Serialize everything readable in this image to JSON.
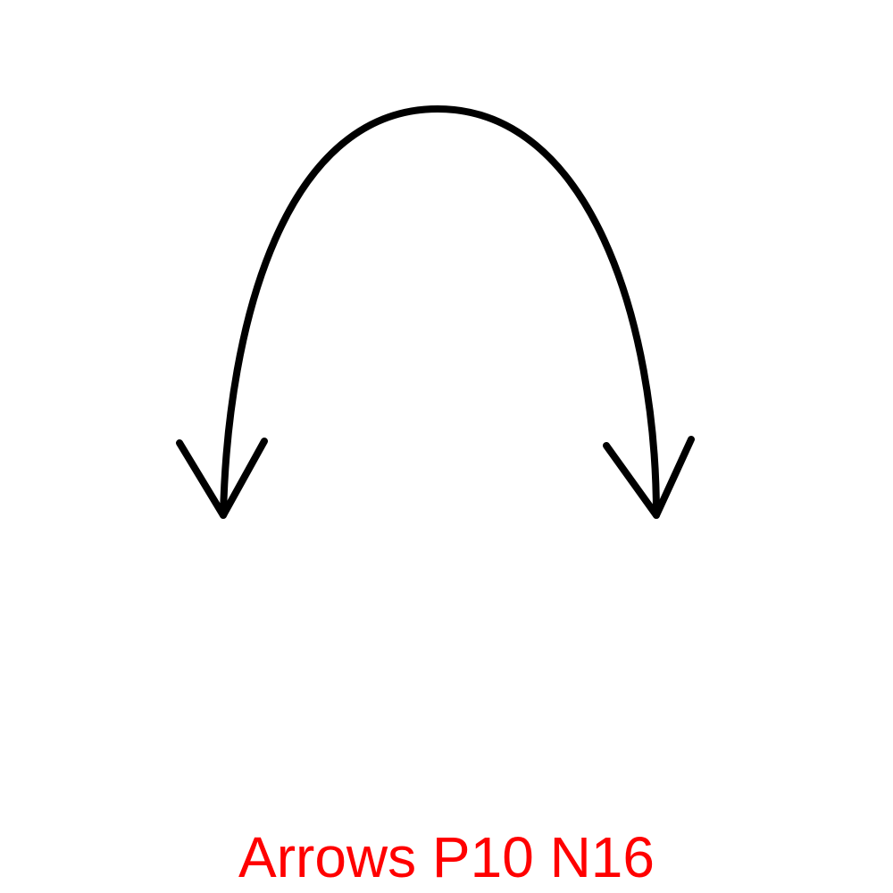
{
  "diagram": {
    "icon": "double-headed-curved-arrow",
    "stroke_color": "#000000",
    "background_color": "#ffffff",
    "arrowheads": [
      "down-left",
      "down-right"
    ]
  },
  "caption": {
    "text": "Arrows P10 N16",
    "color": "#ff0000"
  }
}
